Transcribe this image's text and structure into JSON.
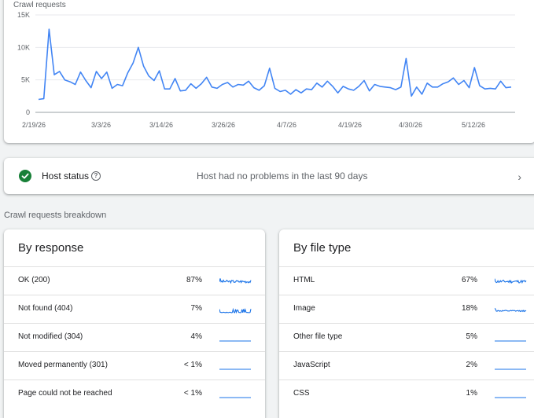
{
  "chart": {
    "title": "Crawl requests",
    "y_ticks": [
      "15K",
      "10K",
      "5K",
      "0"
    ],
    "x_ticks": [
      "2/19/26",
      "3/3/26",
      "3/14/26",
      "3/26/26",
      "4/7/26",
      "4/19/26",
      "4/30/26",
      "5/12/26"
    ],
    "line_color": "#4285f4"
  },
  "chart_data": {
    "type": "line",
    "title": "Crawl requests",
    "ylim": [
      0,
      15000
    ],
    "y_ticks": [
      0,
      5000,
      10000,
      15000
    ],
    "x_start": "2/19/26",
    "x_end": "5/19/26",
    "values": [
      2000,
      2100,
      12800,
      5800,
      6300,
      5000,
      4700,
      4300,
      6200,
      4900,
      3800,
      6300,
      5200,
      6200,
      3700,
      4300,
      4100,
      6100,
      7600,
      10000,
      7100,
      5600,
      4900,
      6400,
      3600,
      3600,
      5200,
      3300,
      3400,
      4400,
      3700,
      4400,
      5400,
      3900,
      3700,
      4300,
      4600,
      3900,
      4300,
      4200,
      4800,
      3800,
      3400,
      4100,
      6800,
      3700,
      3200,
      3400,
      2800,
      3500,
      3000,
      3600,
      3500,
      4500,
      3900,
      4800,
      4000,
      3000,
      4000,
      3600,
      3400,
      4000,
      4900,
      3300,
      4300,
      4000,
      3900,
      3800,
      3500,
      3900,
      8300,
      2500,
      3900,
      2800,
      4500,
      3900,
      3900,
      4400,
      4700,
      5300,
      4300,
      4900,
      3800,
      6900,
      4100,
      3600,
      3700,
      3600,
      4800,
      3800,
      3900
    ]
  },
  "host": {
    "label": "Host status",
    "message": "Host had no problems in the last 90 days",
    "status_color": "#188038"
  },
  "breakdown_title": "Crawl requests breakdown",
  "by_response": {
    "title": "By response",
    "rows": [
      {
        "label": "OK (200)",
        "pct": "87%"
      },
      {
        "label": "Not found (404)",
        "pct": "7%"
      },
      {
        "label": "Not modified (304)",
        "pct": "4%"
      },
      {
        "label": "Moved permanently (301)",
        "pct": "< 1%"
      },
      {
        "label": "Page could not be reached",
        "pct": "< 1%"
      }
    ]
  },
  "by_file_type": {
    "title": "By file type",
    "rows": [
      {
        "label": "HTML",
        "pct": "67%"
      },
      {
        "label": "Image",
        "pct": "18%"
      },
      {
        "label": "Other file type",
        "pct": "5%"
      },
      {
        "label": "JavaScript",
        "pct": "2%"
      },
      {
        "label": "CSS",
        "pct": "1%"
      }
    ]
  },
  "sparkline_styles": {
    "by_response": [
      "busy",
      "spiky",
      "flat",
      "flat",
      "flat"
    ],
    "by_file_type": [
      "busy",
      "wavy",
      "flat",
      "flat",
      "flat"
    ]
  }
}
